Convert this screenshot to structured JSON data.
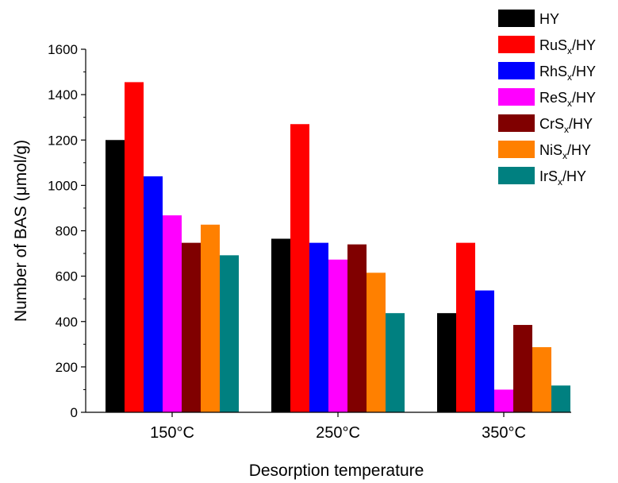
{
  "chart_data": {
    "type": "bar",
    "xlabel": "Desorption temperature",
    "ylabel": "Number of BAS (μmol/g)",
    "ylim": [
      0,
      1600
    ],
    "yticks": [
      0,
      200,
      400,
      600,
      800,
      1000,
      1200,
      1400,
      1600
    ],
    "categories": [
      "150°C",
      "250°C",
      "350°C"
    ],
    "legend_position": "top-right",
    "grid": false,
    "series": [
      {
        "name": "HY",
        "legend": {
          "base": "HY",
          "sub": "",
          "tail": ""
        },
        "color": "#000000",
        "values": [
          1200,
          765,
          437
        ]
      },
      {
        "name": "RuSx/HY",
        "legend": {
          "base": "RuS",
          "sub": "x",
          "tail": "/HY"
        },
        "color": "#ff0000",
        "values": [
          1455,
          1270,
          747
        ]
      },
      {
        "name": "RhSx/HY",
        "legend": {
          "base": "RhS",
          "sub": "x",
          "tail": "/HY"
        },
        "color": "#0000ff",
        "values": [
          1040,
          747,
          537
        ]
      },
      {
        "name": "ReSx/HY",
        "legend": {
          "base": "ReS",
          "sub": "x",
          "tail": "/HY"
        },
        "color": "#ff00ff",
        "values": [
          868,
          673,
          100
        ]
      },
      {
        "name": "CrSx/HY",
        "legend": {
          "base": "CrS",
          "sub": "x",
          "tail": "/HY"
        },
        "color": "#800000",
        "values": [
          747,
          740,
          385
        ]
      },
      {
        "name": "NiSx/HY",
        "legend": {
          "base": "NiS",
          "sub": "x",
          "tail": "/HY"
        },
        "color": "#ff8000",
        "values": [
          827,
          615,
          287
        ]
      },
      {
        "name": "IrSx/HY",
        "legend": {
          "base": "IrS",
          "sub": "x",
          "tail": "/HY"
        },
        "color": "#008080",
        "values": [
          692,
          437,
          118
        ]
      }
    ]
  }
}
